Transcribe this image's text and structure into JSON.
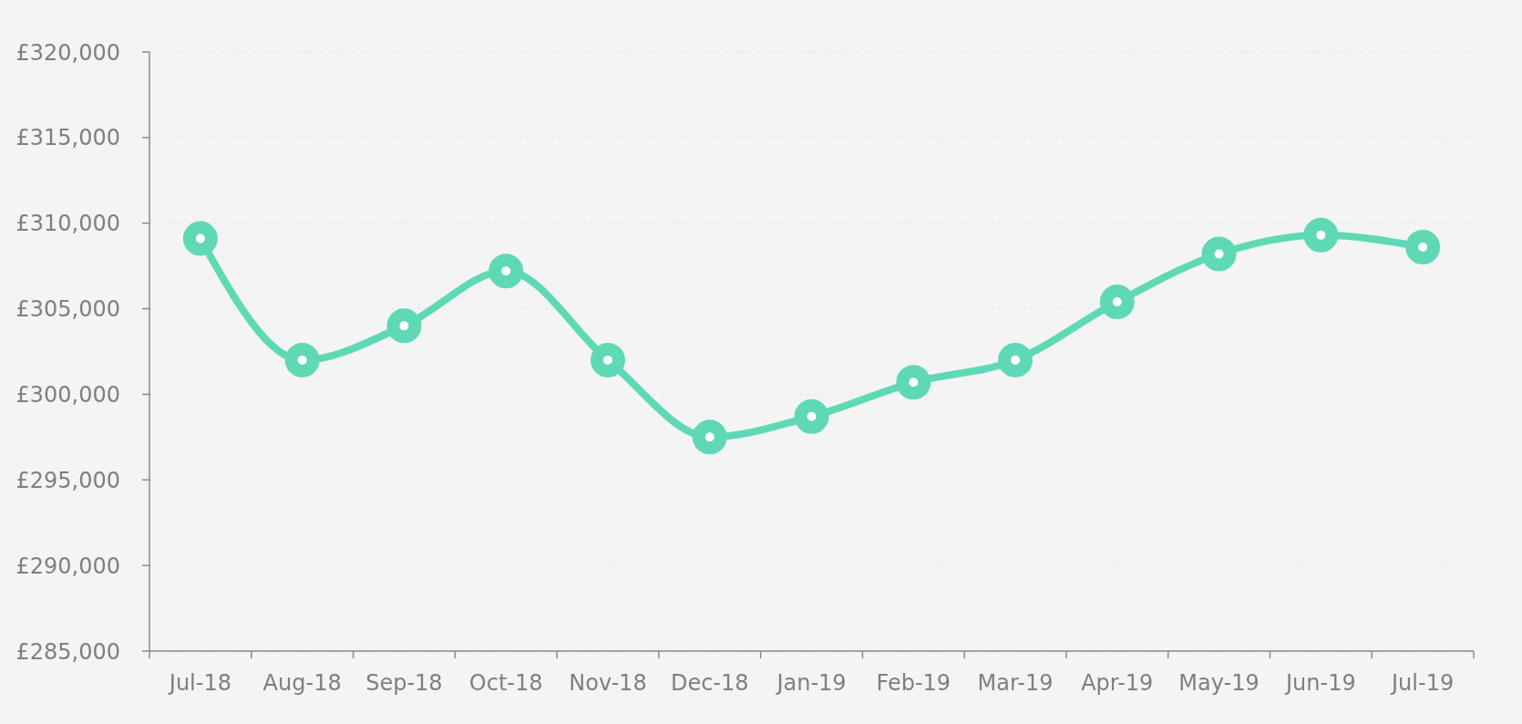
{
  "chart_data": {
    "type": "line",
    "categories": [
      "Jul-18",
      "Aug-18",
      "Sep-18",
      "Oct-18",
      "Nov-18",
      "Dec-18",
      "Jan-19",
      "Feb-19",
      "Mar-19",
      "Apr-19",
      "May-19",
      "Jun-19",
      "Jul-19"
    ],
    "series": [
      {
        "color": "#5fd9b5",
        "values": [
          309100,
          302000,
          304000,
          307200,
          302000,
          297500,
          298700,
          300700,
          302000,
          305400,
          308200,
          309300,
          308600
        ]
      }
    ],
    "ylim": [
      285000,
      320000
    ],
    "yticks": [
      {
        "value": 285000,
        "label": "£285,000"
      },
      {
        "value": 290000,
        "label": "£290,000"
      },
      {
        "value": 295000,
        "label": "£295,000"
      },
      {
        "value": 300000,
        "label": "£300,000"
      },
      {
        "value": 305000,
        "label": "£305,000"
      },
      {
        "value": 310000,
        "label": "£310,000"
      },
      {
        "value": 315000,
        "label": "£315,000"
      },
      {
        "value": 320000,
        "label": "£320,000"
      }
    ],
    "grid": "y",
    "marker": "circle",
    "line_style": "solid"
  }
}
